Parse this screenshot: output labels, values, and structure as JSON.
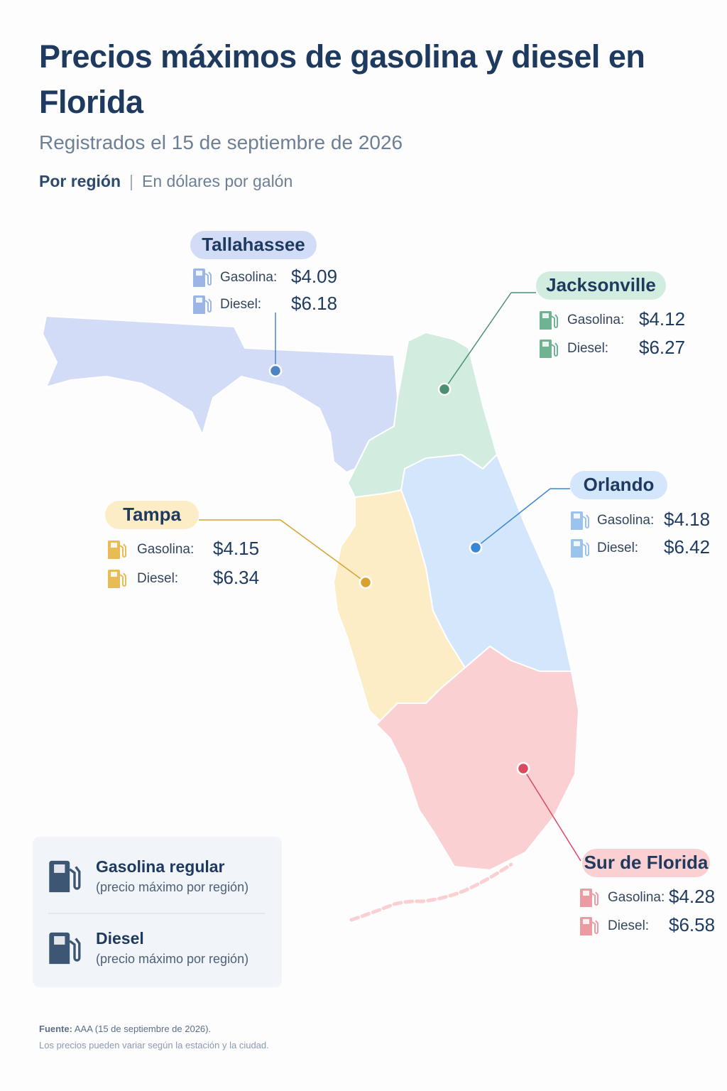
{
  "header": {
    "title": "Precios máximos de gasolina y diesel en Florida",
    "subtitle": "Registrados el 15 de septiembre de 2026",
    "scope": "Por región",
    "unit": "En dólares por galón"
  },
  "regions": [
    {
      "name": "Tallahassee",
      "color": "#d3dcf7",
      "accent": "#4f84c4",
      "icon_color": "#9bb6e6",
      "gas_label": "Gasolina:",
      "gas": "$4.09",
      "diesel_label": "Diesel:",
      "diesel": "$6.18"
    },
    {
      "name": "Jacksonville",
      "color": "#d2ecdf",
      "accent": "#4c8f72",
      "icon_color": "#6fb393",
      "gas_label": "Gasolina:",
      "gas": "$4.12",
      "diesel_label": "Diesel:",
      "diesel": "$6.27"
    },
    {
      "name": "Orlando",
      "color": "#d3e6fb",
      "accent": "#3a86d6",
      "icon_color": "#9cc2ee",
      "gas_label": "Gasolina:",
      "gas": "$4.18",
      "diesel_label": "Diesel:",
      "diesel": "$6.42"
    },
    {
      "name": "Tampa",
      "color": "#fdedc6",
      "accent": "#d9a22e",
      "icon_color": "#e8bb55",
      "gas_label": "Gasolina:",
      "gas": "$4.15",
      "diesel_label": "Diesel:",
      "diesel": "$6.34"
    },
    {
      "name": "Sur de Florida",
      "color": "#fbd0d2",
      "accent": "#d94a5f",
      "icon_color": "#eb9ba1",
      "gas_label": "Gasolina:",
      "gas": "$4.28",
      "diesel_label": "Diesel:",
      "diesel": "$6.58"
    }
  ],
  "legend": [
    {
      "title": "Gasolina regular",
      "note": "(precio máximo por región)"
    },
    {
      "title": "Diesel",
      "note": "(precio máximo por región)"
    }
  ],
  "footer": {
    "source_label": "Fuente:",
    "source": "AAA (15 de septiembre de 2026).",
    "note": "Los precios pueden variar según la estación y la ciudad."
  }
}
